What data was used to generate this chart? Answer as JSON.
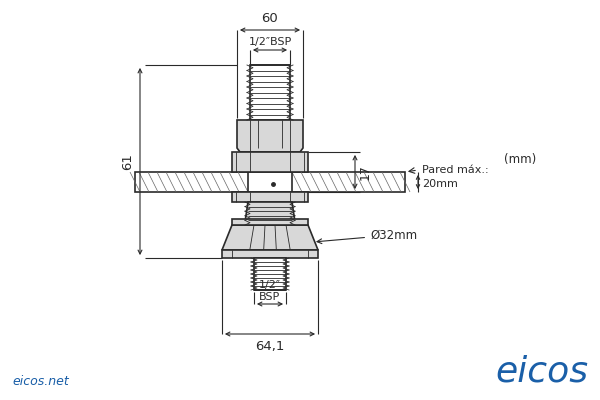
{
  "bg_color": "#ffffff",
  "line_color": "#2a2a2a",
  "hatch_color": "#666666",
  "dim_color": "#2a2a2a",
  "blue_color": "#1a5fa8",
  "gray_fill": "#cccccc",
  "light_gray": "#d8d8d8",
  "dim_60": "60",
  "dim_61": "61",
  "dim_17": "17",
  "dim_64_1": "64,1",
  "dim_bsp_top": "1/2″BSP",
  "dim_bsp_bot": "1/2″\nBSP",
  "dim_pared": "Pared máx.:\n20mm",
  "dim_dia": "Ø32mm",
  "unit": "(mm)",
  "brand": "eicos",
  "website": "eicos.net"
}
